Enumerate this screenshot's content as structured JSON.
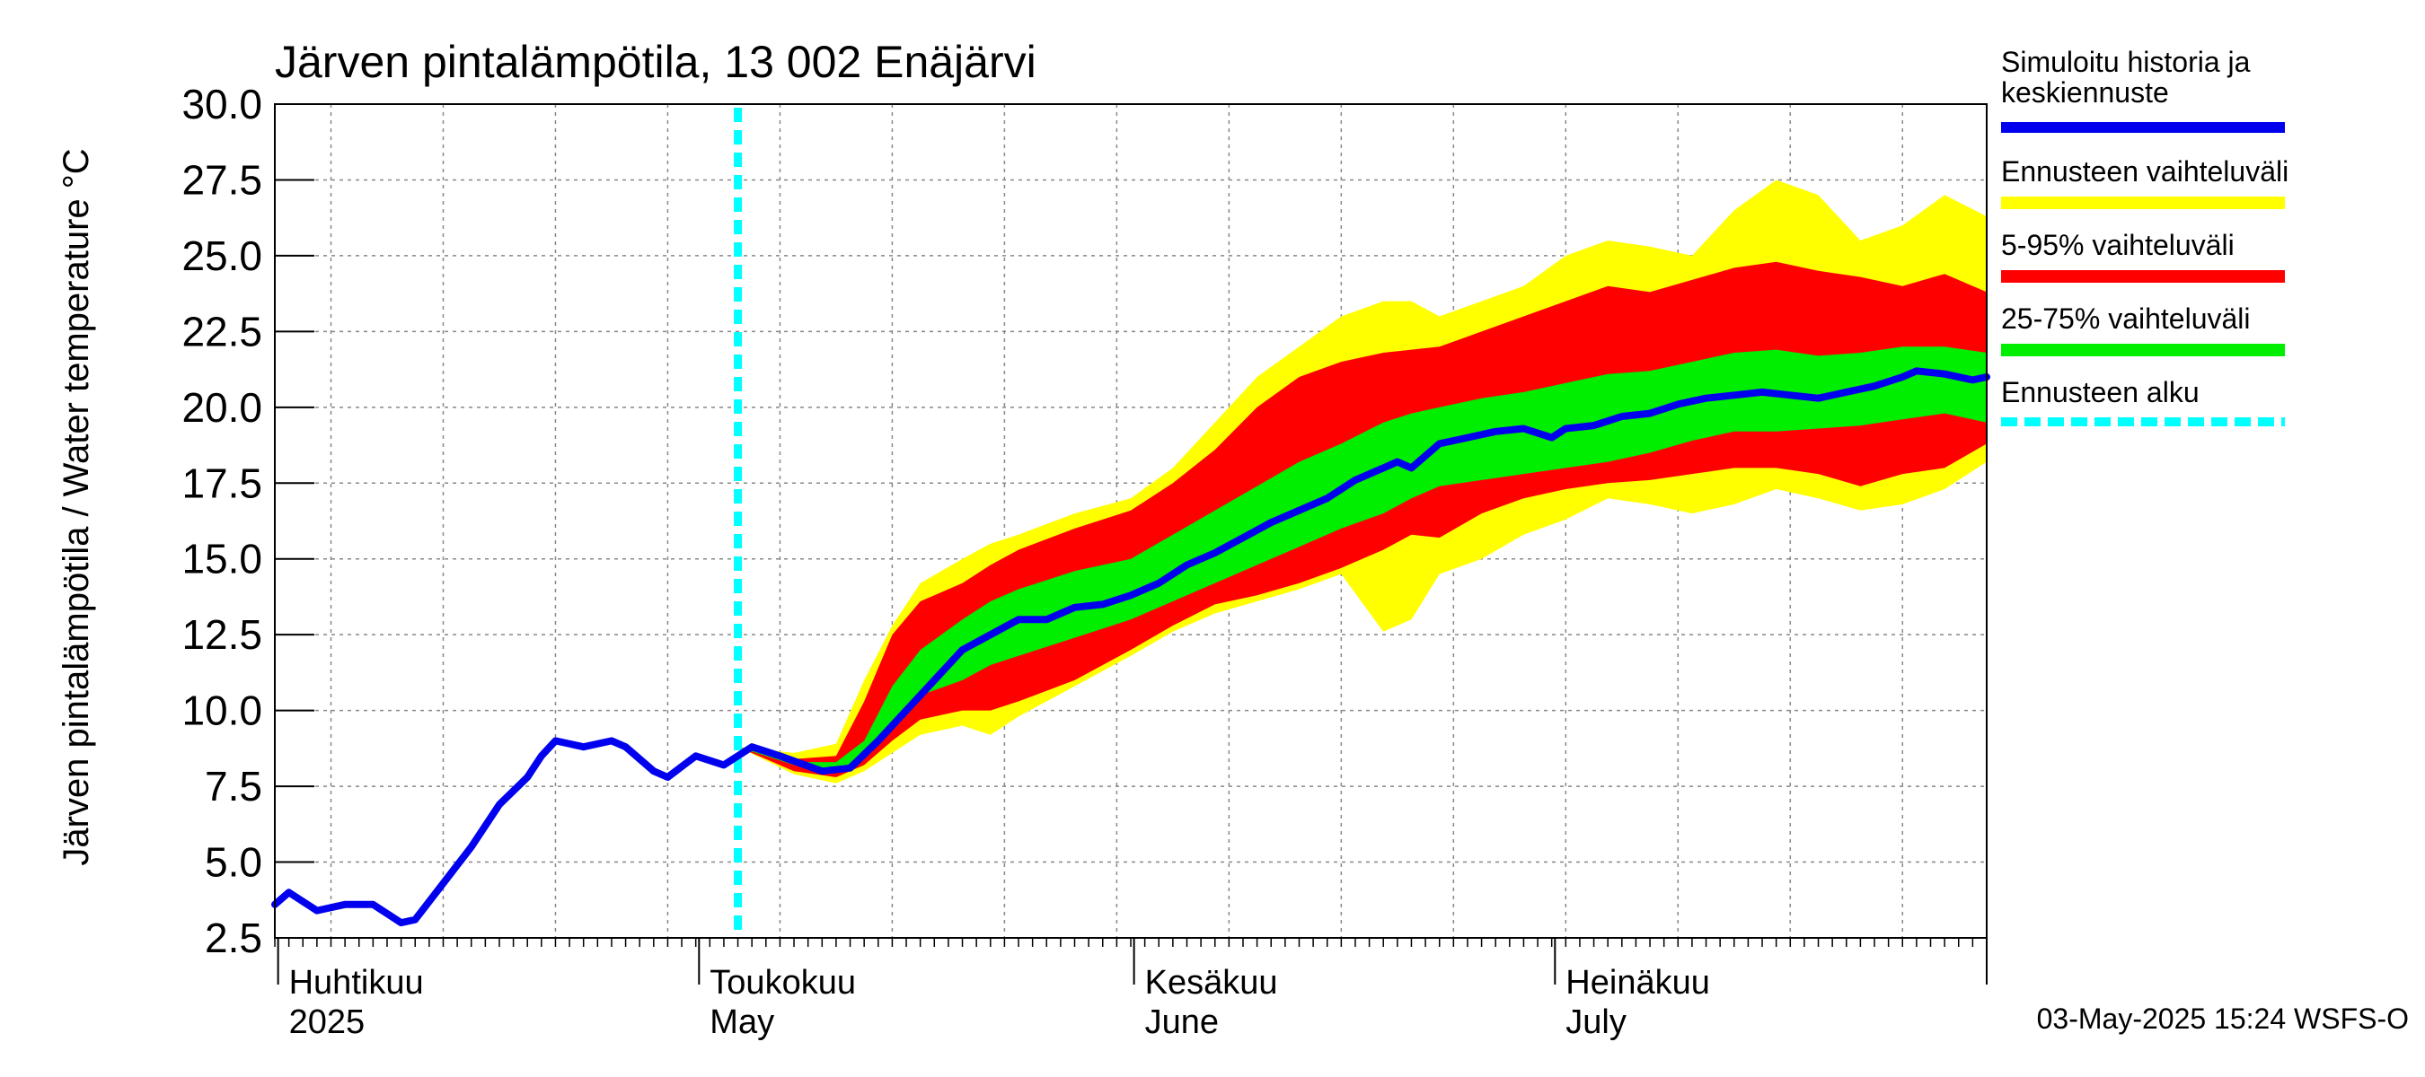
{
  "chart_data": {
    "type": "area",
    "title": "Järven pintalämpötila, 13 002 Enäjärvi",
    "ylabel": "Järven pintalämpötila / Water temperature °C",
    "xlabel": "",
    "ylim": [
      2.5,
      30.0
    ],
    "yticks": [
      "2.5",
      "5.0",
      "7.5",
      "10.0",
      "12.5",
      "15.0",
      "17.5",
      "20.0",
      "22.5",
      "25.0",
      "27.5",
      "30.0"
    ],
    "xlim": [
      "2025-03-31",
      "2025-07-31"
    ],
    "month_labels": [
      {
        "date": "2025-04-01",
        "fi": "Huhtikuu",
        "en": "2025"
      },
      {
        "date": "2025-05-01",
        "fi": "Toukokuu",
        "en": "May"
      },
      {
        "date": "2025-06-01",
        "fi": "Kesäkuu",
        "en": "June"
      },
      {
        "date": "2025-07-01",
        "fi": "Heinäkuu",
        "en": "July"
      }
    ],
    "forecast_start": "2025-05-03",
    "grid": true,
    "legend_position": "right",
    "series": [
      {
        "name": "Simuloitu historia ja keskiennuste",
        "color": "#0000ee",
        "points": [
          [
            "2025-03-31",
            3.6
          ],
          [
            "2025-04-01",
            4.0
          ],
          [
            "2025-04-03",
            3.4
          ],
          [
            "2025-04-05",
            3.6
          ],
          [
            "2025-04-07",
            3.6
          ],
          [
            "2025-04-09",
            3.0
          ],
          [
            "2025-04-10",
            3.1
          ],
          [
            "2025-04-12",
            4.3
          ],
          [
            "2025-04-14",
            5.5
          ],
          [
            "2025-04-16",
            6.9
          ],
          [
            "2025-04-18",
            7.8
          ],
          [
            "2025-04-19",
            8.5
          ],
          [
            "2025-04-20",
            9.0
          ],
          [
            "2025-04-22",
            8.8
          ],
          [
            "2025-04-24",
            9.0
          ],
          [
            "2025-04-25",
            8.8
          ],
          [
            "2025-04-27",
            8.0
          ],
          [
            "2025-04-28",
            7.8
          ],
          [
            "2025-04-30",
            8.5
          ],
          [
            "2025-05-02",
            8.2
          ],
          [
            "2025-05-04",
            8.8
          ],
          [
            "2025-05-06",
            8.5
          ],
          [
            "2025-05-09",
            8.0
          ],
          [
            "2025-05-11",
            8.1
          ],
          [
            "2025-05-13",
            9.0
          ],
          [
            "2025-05-15",
            10.0
          ],
          [
            "2025-05-17",
            11.0
          ],
          [
            "2025-05-19",
            12.0
          ],
          [
            "2025-05-21",
            12.5
          ],
          [
            "2025-05-23",
            13.0
          ],
          [
            "2025-05-25",
            13.0
          ],
          [
            "2025-05-27",
            13.4
          ],
          [
            "2025-05-29",
            13.5
          ],
          [
            "2025-05-31",
            13.8
          ],
          [
            "2025-06-02",
            14.2
          ],
          [
            "2025-06-04",
            14.8
          ],
          [
            "2025-06-06",
            15.2
          ],
          [
            "2025-06-08",
            15.7
          ],
          [
            "2025-06-10",
            16.2
          ],
          [
            "2025-06-12",
            16.6
          ],
          [
            "2025-06-14",
            17.0
          ],
          [
            "2025-06-16",
            17.6
          ],
          [
            "2025-06-18",
            18.0
          ],
          [
            "2025-06-19",
            18.2
          ],
          [
            "2025-06-20",
            18.0
          ],
          [
            "2025-06-22",
            18.8
          ],
          [
            "2025-06-24",
            19.0
          ],
          [
            "2025-06-26",
            19.2
          ],
          [
            "2025-06-28",
            19.3
          ],
          [
            "2025-06-30",
            19.0
          ],
          [
            "2025-07-01",
            19.3
          ],
          [
            "2025-07-03",
            19.4
          ],
          [
            "2025-07-05",
            19.7
          ],
          [
            "2025-07-07",
            19.8
          ],
          [
            "2025-07-09",
            20.1
          ],
          [
            "2025-07-11",
            20.3
          ],
          [
            "2025-07-13",
            20.4
          ],
          [
            "2025-07-15",
            20.5
          ],
          [
            "2025-07-17",
            20.4
          ],
          [
            "2025-07-19",
            20.3
          ],
          [
            "2025-07-21",
            20.5
          ],
          [
            "2025-07-23",
            20.7
          ],
          [
            "2025-07-25",
            21.0
          ],
          [
            "2025-07-26",
            21.2
          ],
          [
            "2025-07-28",
            21.1
          ],
          [
            "2025-07-30",
            20.9
          ],
          [
            "2025-07-31",
            21.0
          ]
        ]
      },
      {
        "name": "Ennusteen vaihteluväli",
        "color": "#ffff00",
        "points": [
          [
            "2025-05-03",
            8.8,
            8.8
          ],
          [
            "2025-05-07",
            8.6,
            7.9
          ],
          [
            "2025-05-10",
            8.9,
            7.6
          ],
          [
            "2025-05-12",
            11.0,
            8.0
          ],
          [
            "2025-05-14",
            12.8,
            8.6
          ],
          [
            "2025-05-16",
            14.2,
            9.2
          ],
          [
            "2025-05-19",
            15.0,
            9.5
          ],
          [
            "2025-05-21",
            15.5,
            9.2
          ],
          [
            "2025-05-23",
            15.8,
            9.8
          ],
          [
            "2025-05-27",
            16.5,
            10.8
          ],
          [
            "2025-05-31",
            17.0,
            11.8
          ],
          [
            "2025-06-03",
            18.0,
            12.6
          ],
          [
            "2025-06-06",
            19.5,
            13.2
          ],
          [
            "2025-06-09",
            21.0,
            13.6
          ],
          [
            "2025-06-12",
            22.0,
            14.0
          ],
          [
            "2025-06-15",
            23.0,
            14.5
          ],
          [
            "2025-06-18",
            23.5,
            12.6
          ],
          [
            "2025-06-20",
            23.5,
            13.0
          ],
          [
            "2025-06-22",
            23.0,
            14.5
          ],
          [
            "2025-06-25",
            23.5,
            15.0
          ],
          [
            "2025-06-28",
            24.0,
            15.8
          ],
          [
            "2025-07-01",
            25.0,
            16.3
          ],
          [
            "2025-07-04",
            25.5,
            17.0
          ],
          [
            "2025-07-07",
            25.3,
            16.8
          ],
          [
            "2025-07-10",
            25.0,
            16.5
          ],
          [
            "2025-07-13",
            26.5,
            16.8
          ],
          [
            "2025-07-16",
            27.5,
            17.3
          ],
          [
            "2025-07-19",
            27.0,
            17.0
          ],
          [
            "2025-07-22",
            25.5,
            16.6
          ],
          [
            "2025-07-25",
            26.0,
            16.8
          ],
          [
            "2025-07-28",
            27.0,
            17.3
          ],
          [
            "2025-07-31",
            26.3,
            18.2
          ]
        ]
      },
      {
        "name": "5-95% vaihteluväli",
        "color": "#ff0000",
        "points": [
          [
            "2025-05-03",
            8.8,
            8.8
          ],
          [
            "2025-05-07",
            8.4,
            8.0
          ],
          [
            "2025-05-10",
            8.5,
            7.8
          ],
          [
            "2025-05-12",
            10.3,
            8.2
          ],
          [
            "2025-05-14",
            12.5,
            9.0
          ],
          [
            "2025-05-16",
            13.6,
            9.7
          ],
          [
            "2025-05-19",
            14.2,
            10.0
          ],
          [
            "2025-05-21",
            14.8,
            10.0
          ],
          [
            "2025-05-23",
            15.3,
            10.3
          ],
          [
            "2025-05-27",
            16.0,
            11.0
          ],
          [
            "2025-05-31",
            16.6,
            12.0
          ],
          [
            "2025-06-03",
            17.5,
            12.8
          ],
          [
            "2025-06-06",
            18.6,
            13.5
          ],
          [
            "2025-06-09",
            20.0,
            13.8
          ],
          [
            "2025-06-12",
            21.0,
            14.2
          ],
          [
            "2025-06-15",
            21.5,
            14.7
          ],
          [
            "2025-06-18",
            21.8,
            15.3
          ],
          [
            "2025-06-20",
            21.9,
            15.8
          ],
          [
            "2025-06-22",
            22.0,
            15.7
          ],
          [
            "2025-06-25",
            22.5,
            16.5
          ],
          [
            "2025-06-28",
            23.0,
            17.0
          ],
          [
            "2025-07-01",
            23.5,
            17.3
          ],
          [
            "2025-07-04",
            24.0,
            17.5
          ],
          [
            "2025-07-07",
            23.8,
            17.6
          ],
          [
            "2025-07-10",
            24.2,
            17.8
          ],
          [
            "2025-07-13",
            24.6,
            18.0
          ],
          [
            "2025-07-16",
            24.8,
            18.0
          ],
          [
            "2025-07-19",
            24.5,
            17.8
          ],
          [
            "2025-07-22",
            24.3,
            17.4
          ],
          [
            "2025-07-25",
            24.0,
            17.8
          ],
          [
            "2025-07-28",
            24.4,
            18.0
          ],
          [
            "2025-07-31",
            23.8,
            18.8
          ]
        ]
      },
      {
        "name": "25-75% vaihteluväli",
        "color": "#00ee00",
        "points": [
          [
            "2025-05-03",
            8.8,
            8.8
          ],
          [
            "2025-05-07",
            8.3,
            8.2
          ],
          [
            "2025-05-10",
            8.3,
            8.0
          ],
          [
            "2025-05-12",
            9.0,
            8.5
          ],
          [
            "2025-05-14",
            10.8,
            9.6
          ],
          [
            "2025-05-16",
            12.0,
            10.5
          ],
          [
            "2025-05-19",
            13.0,
            11.0
          ],
          [
            "2025-05-21",
            13.6,
            11.5
          ],
          [
            "2025-05-23",
            14.0,
            11.8
          ],
          [
            "2025-05-27",
            14.6,
            12.4
          ],
          [
            "2025-05-31",
            15.0,
            13.0
          ],
          [
            "2025-06-03",
            15.8,
            13.6
          ],
          [
            "2025-06-06",
            16.6,
            14.2
          ],
          [
            "2025-06-09",
            17.4,
            14.8
          ],
          [
            "2025-06-12",
            18.2,
            15.4
          ],
          [
            "2025-06-15",
            18.8,
            16.0
          ],
          [
            "2025-06-18",
            19.5,
            16.5
          ],
          [
            "2025-06-20",
            19.8,
            17.0
          ],
          [
            "2025-06-22",
            20.0,
            17.4
          ],
          [
            "2025-06-25",
            20.3,
            17.6
          ],
          [
            "2025-06-28",
            20.5,
            17.8
          ],
          [
            "2025-07-01",
            20.8,
            18.0
          ],
          [
            "2025-07-04",
            21.1,
            18.2
          ],
          [
            "2025-07-07",
            21.2,
            18.5
          ],
          [
            "2025-07-10",
            21.5,
            18.9
          ],
          [
            "2025-07-13",
            21.8,
            19.2
          ],
          [
            "2025-07-16",
            21.9,
            19.2
          ],
          [
            "2025-07-19",
            21.7,
            19.3
          ],
          [
            "2025-07-22",
            21.8,
            19.4
          ],
          [
            "2025-07-25",
            22.0,
            19.6
          ],
          [
            "2025-07-28",
            22.0,
            19.8
          ],
          [
            "2025-07-31",
            21.8,
            19.5
          ]
        ]
      },
      {
        "name": "Ennusteen alku",
        "color": "#00ffff"
      }
    ]
  },
  "legend_labels": {
    "l0": "Simuloitu historia ja keskiennuste",
    "l1": "Ennusteen vaihteluväli",
    "l2": "5-95% vaihteluväli",
    "l3": "25-75% vaihteluväli",
    "l4": "Ennusteen alku"
  },
  "footer": "03-May-2025 15:24 WSFS-O"
}
